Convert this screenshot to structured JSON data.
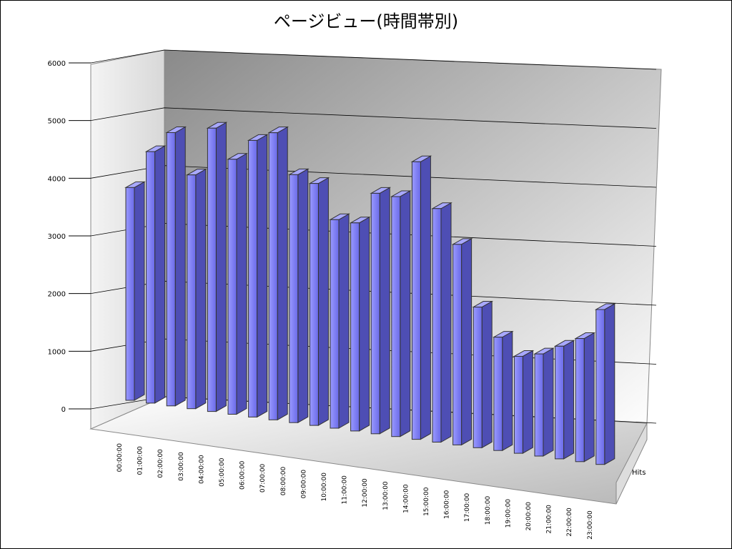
{
  "chart_data": {
    "type": "bar3d",
    "title": "ページビュー(時間帯別)",
    "categories": [
      "00:00:00",
      "01:00:00",
      "02:00:00",
      "03:00:00",
      "04:00:00",
      "05:00:00",
      "06:00:00",
      "07:00:00",
      "08:00:00",
      "09:00:00",
      "10:00:00",
      "11:00:00",
      "12:00:00",
      "13:00:00",
      "14:00:00",
      "15:00:00",
      "16:00:00",
      "17:00:00",
      "18:00:00",
      "19:00:00",
      "20:00:00",
      "21:00:00",
      "22:00:00",
      "23:00:00"
    ],
    "series": [
      {
        "name": "Hits",
        "color": "#7b7bf0",
        "values": [
          3800,
          4500,
          4900,
          4200,
          5100,
          4600,
          5000,
          5200,
          4500,
          4400,
          3800,
          3800,
          4400,
          4400,
          5100,
          4300,
          3700,
          2600,
          2100,
          1800,
          1900,
          2100,
          2300,
          2900
        ]
      }
    ],
    "ylim": [
      0,
      6000
    ],
    "yticks": [
      0,
      1000,
      2000,
      3000,
      4000,
      5000,
      6000
    ],
    "grid": true
  }
}
